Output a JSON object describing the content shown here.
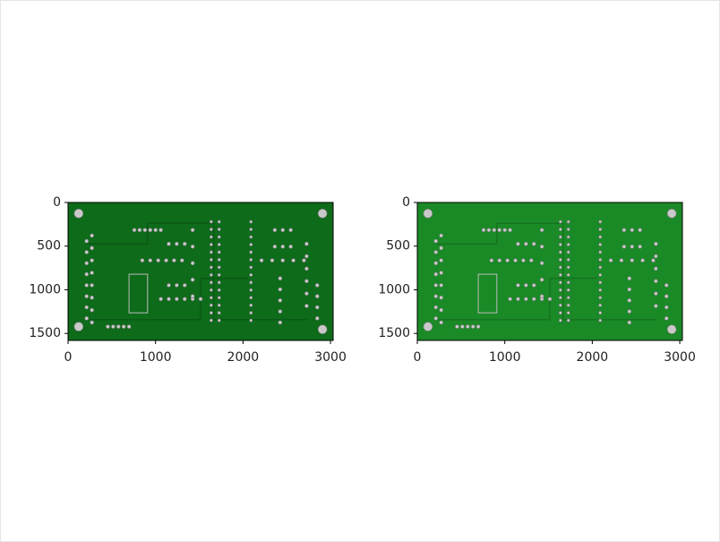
{
  "chart_data": [
    {
      "type": "image",
      "xlim": [
        0,
        3030
      ],
      "ylim": [
        1580,
        0
      ],
      "xticks": [
        0,
        1000,
        2000,
        3000
      ],
      "yticks": [
        0,
        500,
        1000,
        1500
      ],
      "color": "#0d6b1a"
    },
    {
      "type": "image",
      "xlim": [
        0,
        3030
      ],
      "ylim": [
        1580,
        0
      ],
      "xticks": [
        0,
        1000,
        2000,
        3000
      ],
      "yticks": [
        0,
        500,
        1000,
        1500
      ],
      "color": "#1a8a26"
    }
  ]
}
